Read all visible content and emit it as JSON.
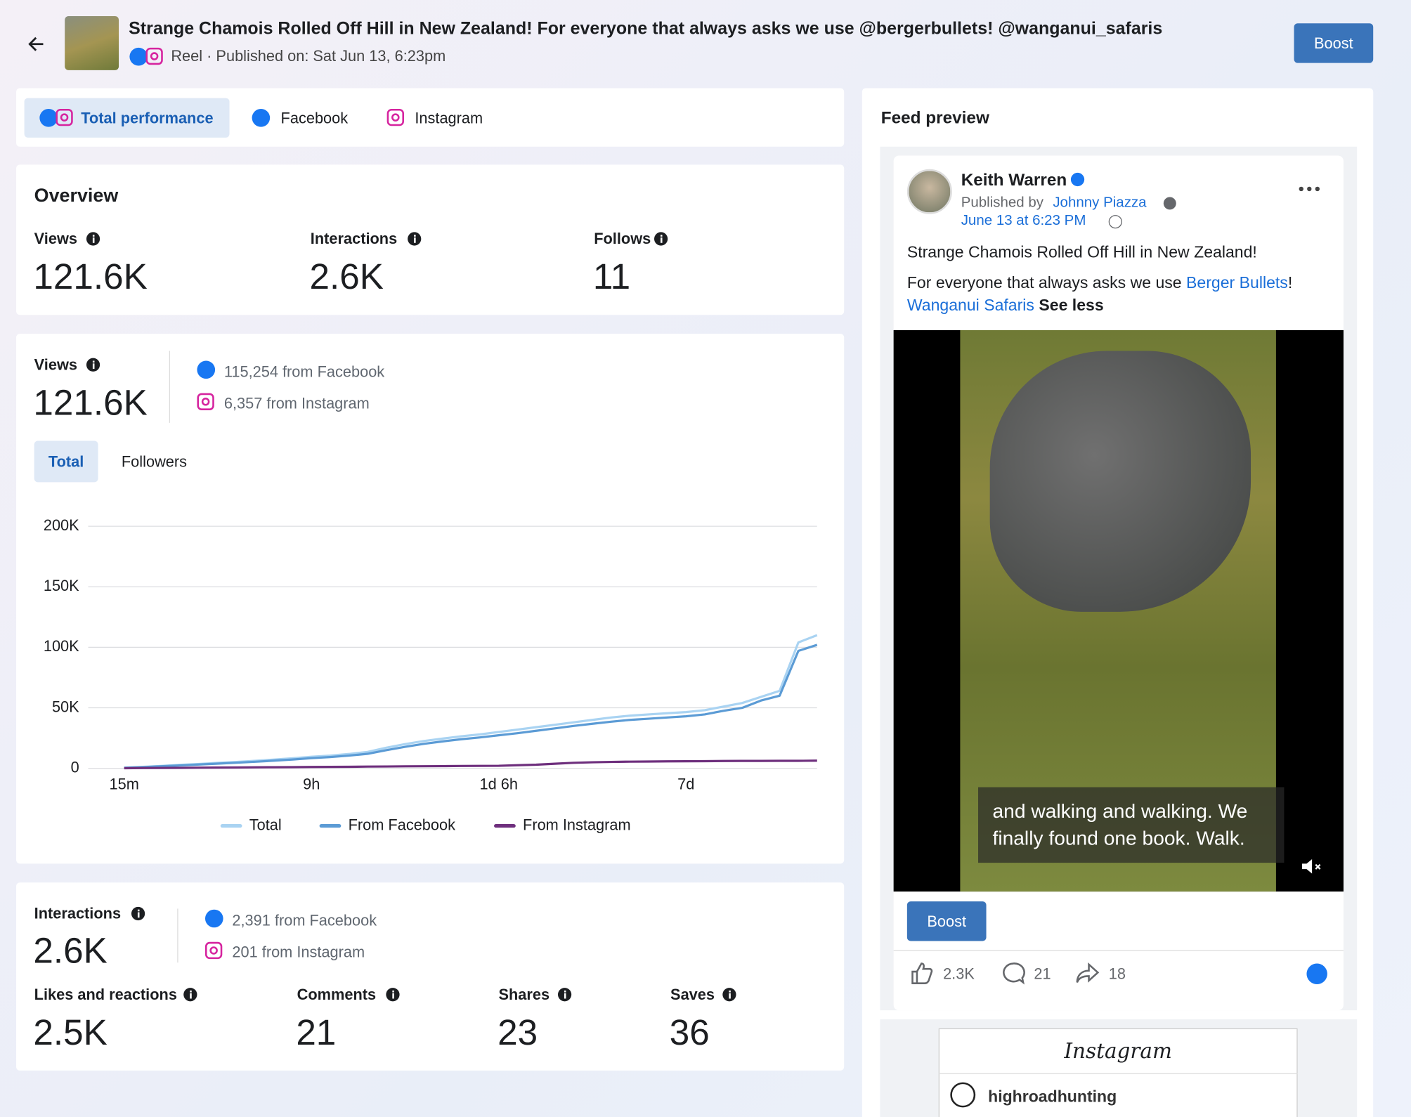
{
  "header": {
    "title": "Strange Chamois Rolled Off Hill in New Zealand! For everyone that always asks we use @bergerbullets! @wanganui_safaris",
    "meta": "Reel · Published on: Sat Jun 13, 6:23pm",
    "boost": "Boost"
  },
  "tabs": [
    "Total performance",
    "Facebook",
    "Instagram"
  ],
  "overview": {
    "title": "Overview",
    "metrics": [
      {
        "label": "Views",
        "value": "121.6K"
      },
      {
        "label": "Interactions",
        "value": "2.6K"
      },
      {
        "label": "Follows",
        "value": "11"
      }
    ]
  },
  "views": {
    "label": "Views",
    "value": "121.6K",
    "facebook": "115,254 from Facebook",
    "instagram": "6,357 from Instagram",
    "toggles": [
      "Total",
      "Followers"
    ]
  },
  "chart_data": {
    "type": "line",
    "categories": [
      "15m",
      null,
      null,
      null,
      null,
      null,
      null,
      null,
      null,
      null,
      "9h",
      null,
      null,
      null,
      null,
      null,
      null,
      null,
      null,
      null,
      "1d 6h",
      null,
      null,
      null,
      null,
      null,
      null,
      null,
      null,
      null,
      "7d",
      null,
      null,
      null,
      null,
      null,
      null,
      null
    ],
    "series": [
      {
        "name": "Total",
        "color": "#a9d3f2",
        "values": [
          500,
          1200,
          2000,
          2800,
          3600,
          4500,
          5300,
          6200,
          7200,
          8300,
          9500,
          10500,
          11800,
          13500,
          17000,
          20000,
          22500,
          24500,
          26500,
          28000,
          30000,
          32000,
          34000,
          36000,
          38000,
          40000,
          42000,
          43500,
          44500,
          45500,
          46500,
          48000,
          51000,
          54000,
          59000,
          64000,
          104000,
          110000
        ]
      },
      {
        "name": "From Facebook",
        "color": "#5b9bd5",
        "values": [
          400,
          1000,
          1700,
          2400,
          3100,
          3900,
          4600,
          5400,
          6300,
          7300,
          8400,
          9300,
          10500,
          12000,
          15000,
          17800,
          20200,
          22200,
          24000,
          25500,
          27300,
          29000,
          31000,
          33000,
          35000,
          36800,
          38500,
          40000,
          41000,
          42000,
          43000,
          44500,
          47500,
          50000,
          56000,
          60000,
          97000,
          102000
        ]
      },
      {
        "name": "From Instagram",
        "color": "#6e2f7d",
        "values": [
          100,
          200,
          300,
          400,
          500,
          600,
          700,
          800,
          900,
          1000,
          1100,
          1200,
          1300,
          1400,
          1500,
          1600,
          1700,
          1800,
          1900,
          2000,
          2100,
          2500,
          3000,
          3800,
          4500,
          5000,
          5300,
          5500,
          5600,
          5700,
          5800,
          5900,
          6000,
          6100,
          6100,
          6200,
          6200,
          6300
        ]
      }
    ],
    "ylim": [
      0,
      200000
    ],
    "yticks": [
      {
        "value": 0,
        "label": "0"
      },
      {
        "value": 50000,
        "label": "50K"
      },
      {
        "value": 100000,
        "label": "100K"
      },
      {
        "value": 150000,
        "label": "150K"
      },
      {
        "value": 200000,
        "label": "200K"
      }
    ],
    "grid": true,
    "legend": "bottom"
  },
  "interactions": {
    "label": "Interactions",
    "value": "2.6K",
    "facebook": "2,391 from Facebook",
    "instagram": "201 from Instagram",
    "metrics": [
      {
        "label": "Likes and reactions",
        "value": "2.5K"
      },
      {
        "label": "Comments",
        "value": "21"
      },
      {
        "label": "Shares",
        "value": "23"
      },
      {
        "label": "Saves",
        "value": "36"
      }
    ]
  },
  "feed_preview": {
    "title": "Feed preview",
    "author": "Keith Warren",
    "published_by": "Published by",
    "publisher": "Johnny Piazza",
    "date": "June 13 at 6:23 PM",
    "line1": "Strange Chamois Rolled Off Hill in New Zealand!",
    "line2": "For everyone that always asks we use",
    "link1": "Berger Bullets",
    "link1_suffix": "!",
    "link2": "Wanganui Safaris",
    "see_less": "See less",
    "caption": "and walking and walking. We finally found one book. Walk.",
    "boost": "Boost",
    "likes": "2.3K",
    "comments": "21",
    "shares": "18",
    "instagram_logo": "Instagram",
    "ig_user": "highroadhunting"
  }
}
